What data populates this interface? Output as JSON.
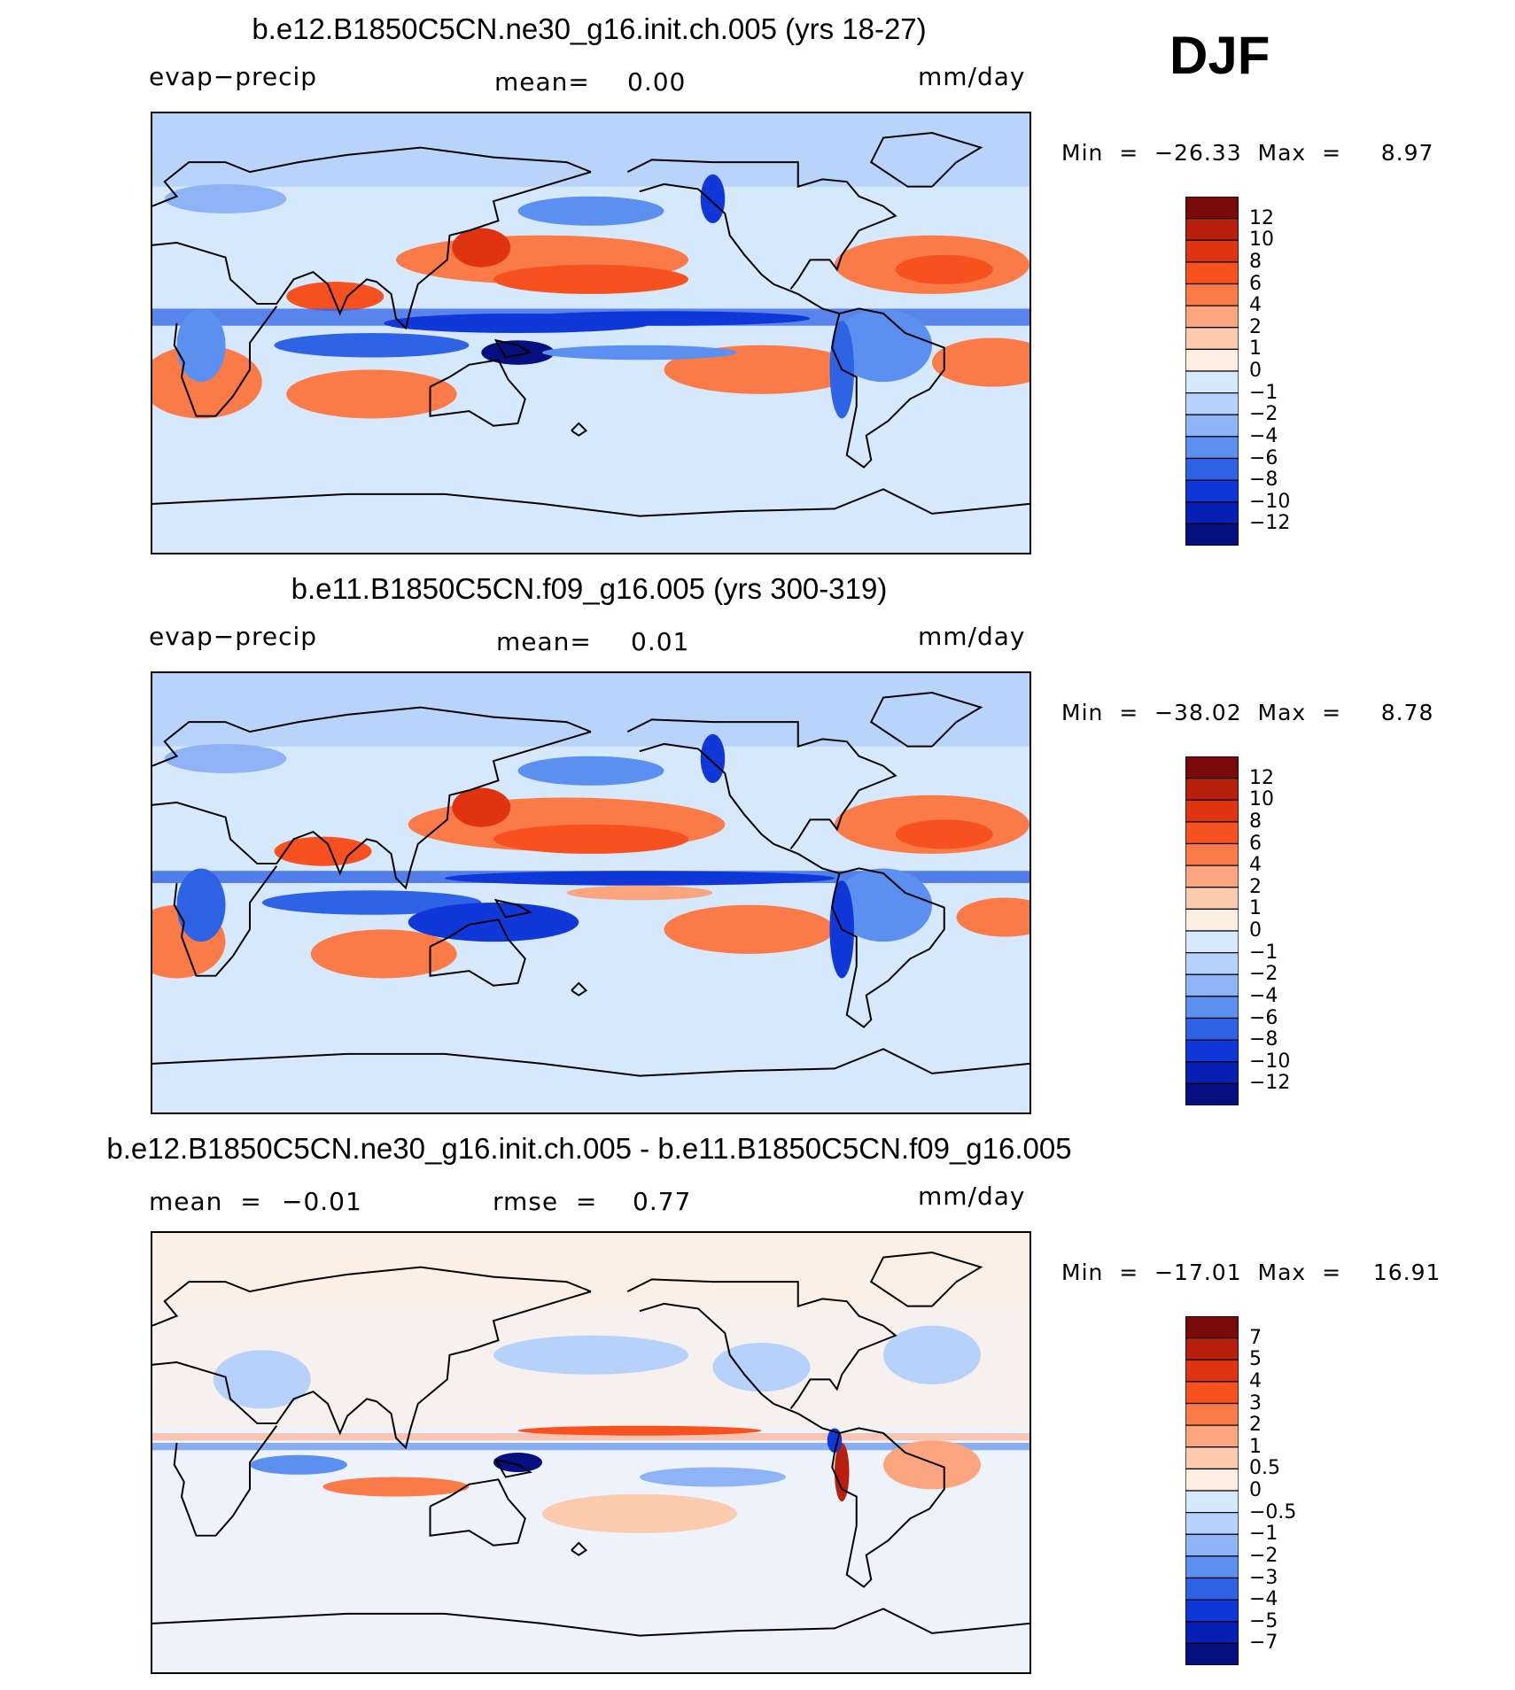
{
  "season": "DJF",
  "chart_data": [
    {
      "type": "heatmap",
      "title": "b.e12.B1850C5CN.ne30_g16.init.ch.005 (yrs 18-27)",
      "variable": "evap−precip",
      "stat_label": "mean=",
      "stat_value": "0.00",
      "units": "mm/day",
      "min_label": "Min  =  −26.33  Max  =     8.97",
      "min": -26.33,
      "max": 8.97,
      "colorbar_ticks": [
        "12",
        "10",
        "8",
        "6",
        "4",
        "2",
        "1",
        "0",
        "−1",
        "−2",
        "−4",
        "−6",
        "−8",
        "−10",
        "−12"
      ]
    },
    {
      "type": "heatmap",
      "title": "b.e11.B1850C5CN.f09_g16.005 (yrs 300-319)",
      "variable": "evap−precip",
      "stat_label": "mean=",
      "stat_value": "0.01",
      "units": "mm/day",
      "min_label": "Min  =  −38.02  Max  =     8.78",
      "min": -38.02,
      "max": 8.78,
      "colorbar_ticks": [
        "12",
        "10",
        "8",
        "6",
        "4",
        "2",
        "1",
        "0",
        "−1",
        "−2",
        "−4",
        "−6",
        "−8",
        "−10",
        "−12"
      ]
    },
    {
      "type": "heatmap",
      "title": "b.e12.B1850C5CN.ne30_g16.init.ch.005 - b.e11.B1850C5CN.f09_g16.005",
      "mean_label": "mean  =",
      "mean_value": "−0.01",
      "rmse_label": "rmse  =",
      "rmse_value": "0.77",
      "units": "mm/day",
      "min_label": "Min  =  −17.01  Max  =    16.91",
      "min": -17.01,
      "max": 16.91,
      "colorbar_ticks": [
        "7",
        "5",
        "4",
        "3",
        "2",
        "1",
        "0.5",
        "0",
        "−0.5",
        "−1",
        "−2",
        "−3",
        "−4",
        "−5",
        "−7"
      ]
    }
  ],
  "colors": {
    "palette": [
      "#7a0a0a",
      "#b8200e",
      "#e0330f",
      "#f7511f",
      "#fa7a48",
      "#fba57f",
      "#fccbae",
      "#fdeee2",
      "#d6e8fb",
      "#b6d1fa",
      "#8fb3f7",
      "#5b8ff0",
      "#2f63e6",
      "#1038d8",
      "#0520b3",
      "#050f80"
    ]
  }
}
